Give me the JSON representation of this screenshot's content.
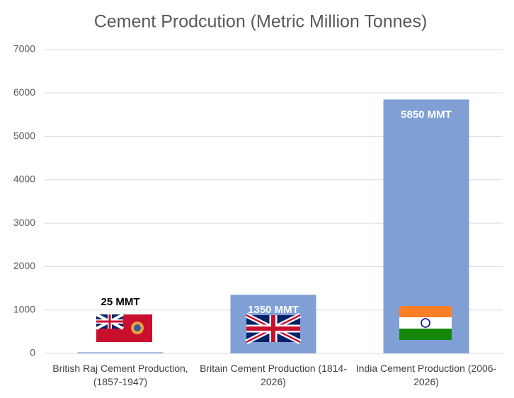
{
  "chart_data": {
    "type": "bar",
    "title": "Cement Prodcution (Metric Million Tonnes)",
    "categories": [
      "British Raj Cement Production, (1857-1947)",
      "Britain Cement Production (1814-2026)",
      "India Cement Production (2006-2026)"
    ],
    "values": [
      25,
      1350,
      5850
    ],
    "value_labels": [
      "25 MMT",
      "1350 MMT",
      "5850 MMT"
    ],
    "color": "#7f9fd5",
    "ylim": [
      0,
      7000
    ],
    "yticks": [
      0,
      1000,
      2000,
      3000,
      4000,
      5000,
      6000,
      7000
    ],
    "grid": true
  }
}
